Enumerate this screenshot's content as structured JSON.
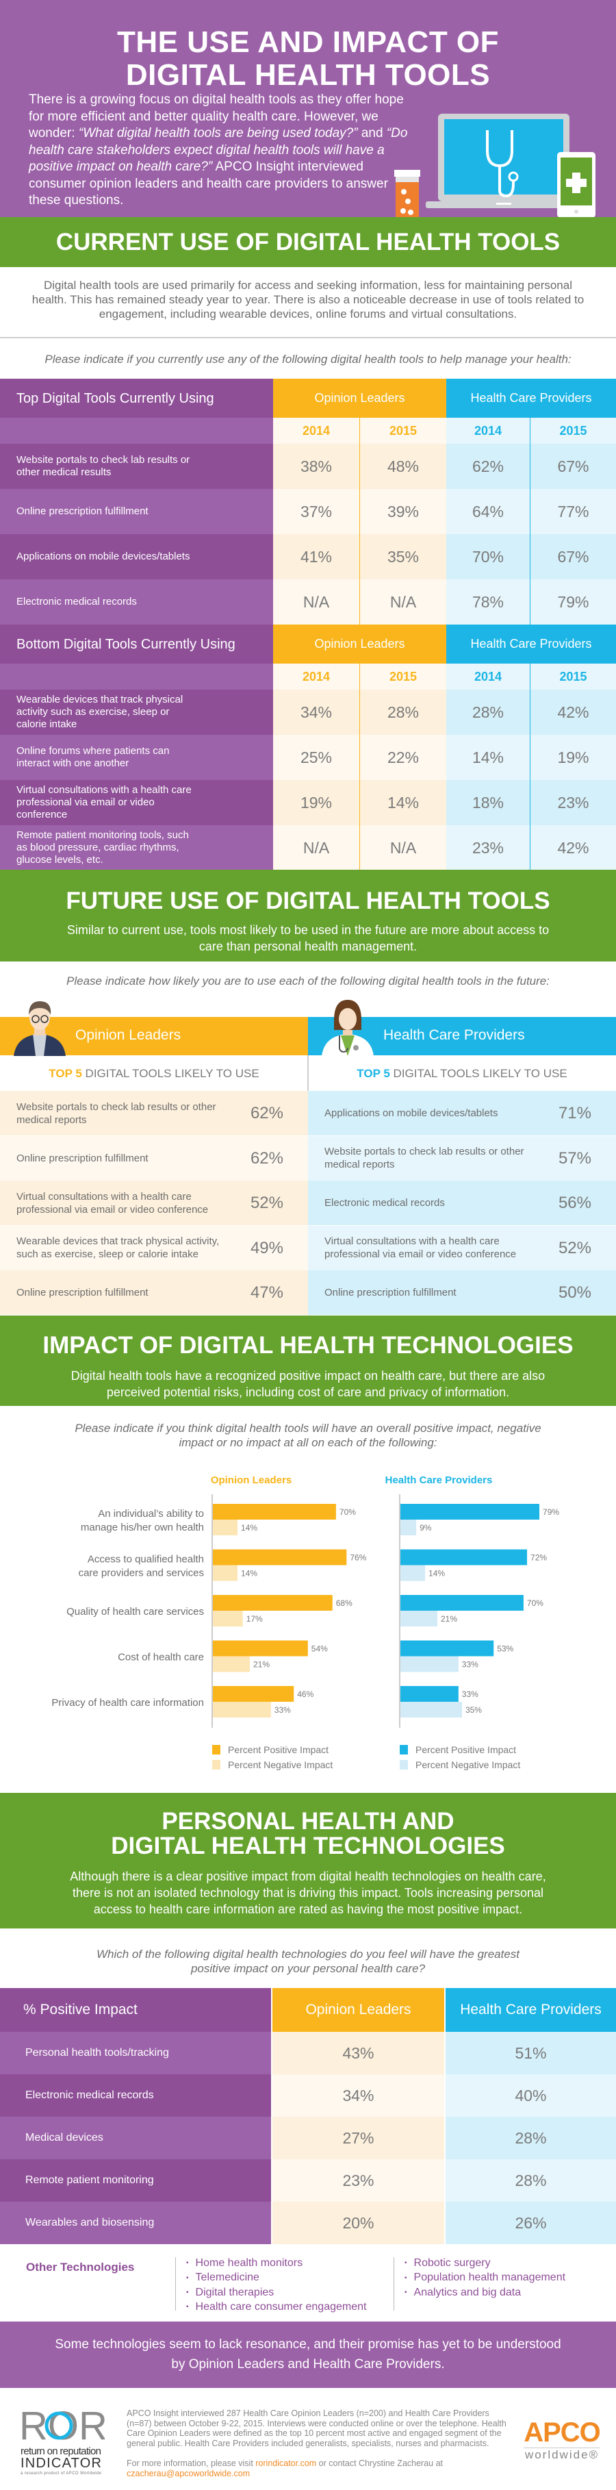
{
  "colors": {
    "purple": "#9c62a8",
    "purple_dark": "#8e4f97",
    "green": "#65a22e",
    "orange": "#f9b51b",
    "blue": "#1cb5e6",
    "apco_orange": "#f08a24"
  },
  "hero": {
    "title_line1": "THE USE AND IMPACT OF",
    "title_line2": "DIGITAL HEALTH TOOLS",
    "intro_1": "There is a growing focus on digital health tools as they offer hope for more efficient and better quality health care. However, we wonder: ",
    "intro_q1": "“What digital health tools are being used today?”",
    "intro_2": " and ",
    "intro_q2": "“Do health care stakeholders expect digital health tools will have a positive impact on health care?”",
    "intro_3": " APCO Insight interviewed consumer opinion leaders and health care providers to answer these questions.",
    "icons": [
      "pill-bottle-icon",
      "laptop-stethoscope-icon",
      "phone-plus-icon"
    ]
  },
  "current": {
    "title": "CURRENT USE OF DIGITAL HEALTH TOOLS",
    "description": "Digital health tools are used primarily for access and seeking information, less for maintaining personal health. This has remained steady year to year. There is also a noticeable decrease in use of tools related to engagement, including wearable devices, online forums and virtual consultations.",
    "question": "Please indicate if you currently use any of the following digital health tools to help manage your health:",
    "tables": [
      {
        "heading": "Top Digital Tools Currently Using",
        "groups": [
          "Opinion Leaders",
          "Health Care Providers"
        ],
        "years": [
          "2014",
          "2015",
          "2014",
          "2015"
        ],
        "rows": [
          {
            "label": "Website portals to check lab results or other medical results",
            "values": [
              "38%",
              "48%",
              "62%",
              "67%"
            ]
          },
          {
            "label": "Online prescription fulfillment",
            "values": [
              "37%",
              "39%",
              "64%",
              "77%"
            ]
          },
          {
            "label": "Applications on mobile devices/tablets",
            "values": [
              "41%",
              "35%",
              "70%",
              "67%"
            ]
          },
          {
            "label": "Electronic medical records",
            "values": [
              "N/A",
              "N/A",
              "78%",
              "79%"
            ]
          }
        ]
      },
      {
        "heading": "Bottom Digital Tools Currently Using",
        "groups": [
          "Opinion Leaders",
          "Health Care Providers"
        ],
        "years": [
          "2014",
          "2015",
          "2014",
          "2015"
        ],
        "rows": [
          {
            "label": "Wearable devices that track physical activity such as exercise, sleep or calorie intake",
            "values": [
              "34%",
              "28%",
              "28%",
              "42%"
            ]
          },
          {
            "label": "Online forums where patients can interact with one another",
            "values": [
              "25%",
              "22%",
              "14%",
              "19%"
            ]
          },
          {
            "label": "Virtual consultations with a health care professional via email or video conference",
            "values": [
              "19%",
              "14%",
              "18%",
              "23%"
            ]
          },
          {
            "label": "Remote patient monitoring tools, such as blood pressure, cardiac rhythms, glucose levels, etc.",
            "values": [
              "N/A",
              "N/A",
              "23%",
              "42%"
            ]
          }
        ]
      }
    ]
  },
  "future": {
    "title": "FUTURE USE OF DIGITAL HEALTH TOOLS",
    "description": "Similar to current use, tools most likely to be used in the future are more about access to care than personal health management.",
    "question": "Please indicate how likely you are to use each of the following digital health tools in the future:",
    "top5_highlight": "TOP 5",
    "top5_rest": " DIGITAL TOOLS LIKELY TO USE",
    "groups": [
      {
        "name": "Opinion Leaders",
        "avatar": "businessman-avatar-icon",
        "rows": [
          {
            "label": "Website portals to check lab results or other medical reports",
            "value": "62%"
          },
          {
            "label": "Online prescription fulfillment",
            "value": "62%"
          },
          {
            "label": "Virtual consultations with a health care professional via email or video conference",
            "value": "52%"
          },
          {
            "label": "Wearable devices that track physical activity, such as exercise, sleep or calorie intake",
            "value": "49%"
          },
          {
            "label": "Online prescription fulfillment",
            "value": "47%"
          }
        ]
      },
      {
        "name": "Health Care Providers",
        "avatar": "doctor-avatar-icon",
        "rows": [
          {
            "label": "Applications on mobile devices/tablets",
            "value": "71%"
          },
          {
            "label": "Website portals to check lab results or other medical reports",
            "value": "57%"
          },
          {
            "label": "Electronic medical records",
            "value": "56%"
          },
          {
            "label": "Virtual consultations with a health care professional via email or video conference",
            "value": "52%"
          },
          {
            "label": "Online prescription fulfillment",
            "value": "50%"
          }
        ]
      }
    ]
  },
  "impact": {
    "title": "IMPACT OF DIGITAL HEALTH TECHNOLOGIES",
    "description": "Digital health tools have a recognized positive impact on health care, but there are also perceived potential risks, including cost of care and privacy of information.",
    "question": "Please indicate if you think digital health tools will have an overall positive impact, negative impact or no impact at all on each of the following:"
  },
  "chart_data": {
    "type": "bar",
    "orientation": "horizontal",
    "categories": [
      [
        "An individual’s ability to",
        "manage his/her own health"
      ],
      [
        "Access to qualified health",
        "care providers and services"
      ],
      [
        "Quality of health care services"
      ],
      [
        "Cost of health care"
      ],
      [
        "Privacy of health care information"
      ]
    ],
    "panels": [
      {
        "title": "Opinion Leaders",
        "color_positive": "#f9b51b",
        "color_negative": "#fde6b6",
        "series": [
          {
            "name": "Percent Positive Impact",
            "values": [
              70,
              76,
              68,
              54,
              46
            ]
          },
          {
            "name": "Percent Negative Impact",
            "values": [
              14,
              14,
              17,
              21,
              33
            ]
          }
        ]
      },
      {
        "title": "Health Care Providers",
        "color_positive": "#1cb5e6",
        "color_negative": "#d2ebf6",
        "series": [
          {
            "name": "Percent Positive Impact",
            "values": [
              79,
              72,
              70,
              53,
              33
            ]
          },
          {
            "name": "Percent Negative Impact",
            "values": [
              9,
              14,
              21,
              33,
              35
            ]
          }
        ]
      }
    ],
    "value_suffix": "%",
    "xlim": [
      0,
      100
    ],
    "grid": false,
    "legend": "bottom"
  },
  "personal": {
    "title_line1": "PERSONAL HEALTH AND",
    "title_line2": "DIGITAL HEALTH TECHNOLOGIES",
    "description": "Although there is a clear positive impact from digital health technologies on health care, there is not an isolated technology that is driving this impact. Tools increasing personal access to health care information are rated as having the most positive impact.",
    "question": "Which of the following digital health technologies do you feel will have the greatest positive impact on your personal health care?",
    "table": {
      "headers": [
        "% Positive Impact",
        "Opinion Leaders",
        "Health Care Providers"
      ],
      "rows": [
        {
          "label": "Personal health tools/tracking",
          "values": [
            "43%",
            "51%"
          ]
        },
        {
          "label": "Electronic medical records",
          "values": [
            "34%",
            "40%"
          ]
        },
        {
          "label": "Medical devices",
          "values": [
            "27%",
            "28%"
          ]
        },
        {
          "label": "Remote patient monitoring",
          "values": [
            "23%",
            "28%"
          ]
        },
        {
          "label": "Wearables and biosensing",
          "values": [
            "20%",
            "26%"
          ]
        }
      ]
    },
    "other_label": "Other Technologies",
    "other_col1": [
      "Home health monitors",
      "Telemedicine",
      "Digital therapies",
      "Health care consumer engagement"
    ],
    "other_col2": [
      "Robotic surgery",
      "Population health management",
      "Analytics and big data"
    ],
    "conclusion": "Some technologies seem to lack resonance, and their promise has yet to be understood by Opinion Leaders and Health Care Providers."
  },
  "footer": {
    "ror_logo": {
      "letters": "ROR",
      "line1": "return on reputation",
      "line2": "INDICATOR",
      "line3": "a research product of APCO Worldwide"
    },
    "methodology": "APCO Insight interviewed 287 Health Care Opinion Leaders (n=200) and Health Care Providers (n=87) between October 9-22, 2015. Interviews were conducted online or over the telephone. Health Care Opinion Leaders were defined as the top 10 percent most active and engaged segment of the general public. Health Care Providers included generalists, specialists, nurses and pharmacists.",
    "more_1": "For more information, please visit ",
    "more_link": "rorindicator.com",
    "more_2": " or contact Chrystine Zacherau at ",
    "more_email": "czacherau@apcoworldwide.com",
    "apco_logo": {
      "name": "APCO",
      "tag": "worldwide®"
    }
  }
}
